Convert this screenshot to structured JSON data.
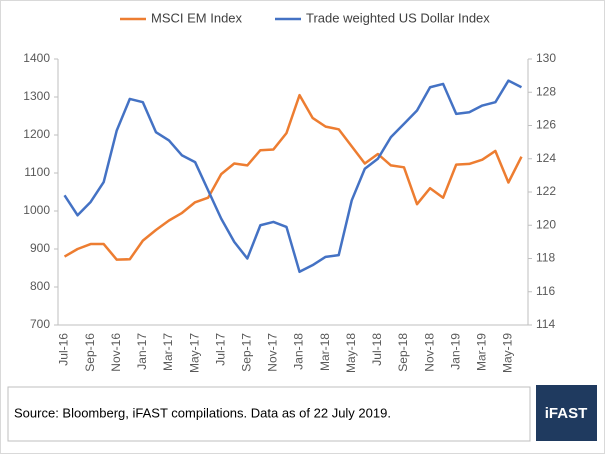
{
  "chart_data": {
    "type": "line",
    "categories": [
      "Jul-16",
      null,
      "Sep-16",
      null,
      "Nov-16",
      null,
      "Jan-17",
      null,
      "Mar-17",
      null,
      "May-17",
      null,
      "Jul-17",
      null,
      "Sep-17",
      null,
      "Nov-17",
      null,
      "Jan-18",
      null,
      "Mar-18",
      null,
      "May-18",
      null,
      "Jul-18",
      null,
      "Sep-18",
      null,
      "Nov-18",
      null,
      "Jan-19",
      null,
      "Mar-19",
      null,
      "May-19",
      null
    ],
    "series": [
      {
        "name": "MSCI EM Index",
        "color": "#ed7d31",
        "axis": "y",
        "values": [
          880,
          900,
          913,
          913,
          872,
          873,
          922,
          950,
          975,
          995,
          1023,
          1035,
          1097,
          1125,
          1120,
          1160,
          1162,
          1205,
          1305,
          1245,
          1222,
          1215,
          1170,
          1125,
          1150,
          1120,
          1115,
          1018,
          1060,
          1035,
          1122,
          1124,
          1135,
          1158,
          1075,
          1143
        ]
      },
      {
        "name": "Trade weighted US Dollar Index",
        "color": "#4472c4",
        "axis": "y2",
        "values": [
          121.8,
          120.6,
          121.4,
          122.6,
          125.7,
          127.6,
          127.4,
          125.6,
          125.1,
          124.2,
          123.8,
          122.1,
          120.4,
          119.0,
          118.0,
          120.0,
          120.2,
          119.9,
          117.2,
          117.6,
          118.1,
          118.2,
          121.5,
          123.4,
          124.0,
          125.3,
          126.1,
          126.9,
          128.3,
          128.5,
          126.7,
          126.8,
          127.2,
          127.4,
          128.7,
          128.3
        ]
      }
    ],
    "ylim": [
      700,
      1400
    ],
    "yticks": [
      700,
      800,
      900,
      1000,
      1100,
      1200,
      1300,
      1400
    ],
    "y2lim": [
      114,
      130
    ],
    "y2ticks": [
      114,
      116,
      118,
      120,
      122,
      124,
      126,
      128,
      130
    ],
    "legend": "top"
  },
  "footer": {
    "source": "Source: Bloomberg, iFAST compilations. Data as of 22 July 2019.",
    "logo": "iFAST"
  }
}
